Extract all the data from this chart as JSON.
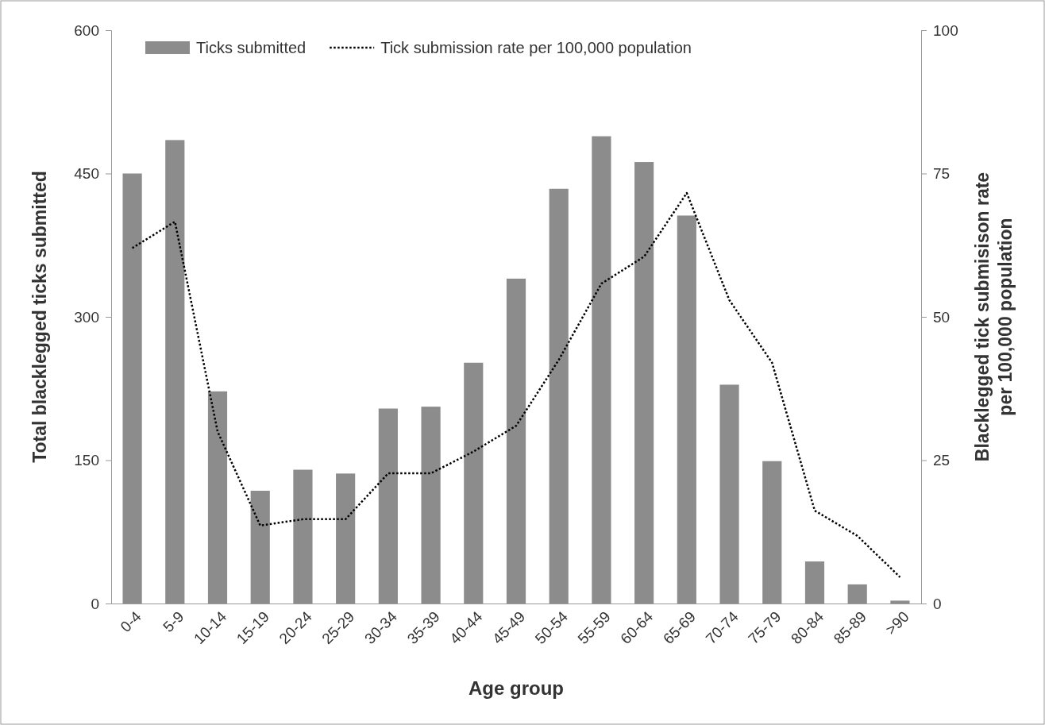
{
  "chart_data": {
    "type": "bar",
    "xlabel": "Age group",
    "ylabel": "Total blacklegged ticks submitted",
    "y2label": "Blacklegged tick submisison rate per 100,000 population",
    "categories": [
      "0-4",
      "5-9",
      "10-14",
      "15-19",
      "20-24",
      "25-29",
      "30-34",
      "35-39",
      "40-44",
      "45-49",
      "50-54",
      "55-59",
      "60-64",
      "65-69",
      "70-74",
      "75-79",
      "80-84",
      "85-89",
      ">90"
    ],
    "series": [
      {
        "name": "Ticks submitted",
        "color": "#8c8c8c",
        "values": [
          450,
          485,
          222,
          118,
          140,
          136,
          204,
          206,
          252,
          340,
          434,
          489,
          462,
          406,
          229,
          149,
          44,
          20,
          3
        ]
      },
      {
        "name": "Tick submission rate per 100,000 population",
        "type": "line",
        "axis": "y2",
        "color": "#000000",
        "line_style": "dotted",
        "values": [
          62,
          66.6,
          30,
          13.6,
          14.7,
          14.7,
          22.7,
          22.7,
          26.5,
          31,
          42.5,
          55.8,
          60.5,
          71.6,
          52.9,
          42,
          16.2,
          11.8,
          4.6
        ]
      }
    ],
    "ylim": [
      0,
      600
    ],
    "yticks": [
      0,
      150,
      300,
      450,
      600
    ],
    "y2lim": [
      0,
      100
    ],
    "y2ticks": [
      0,
      25,
      50,
      75,
      100
    ],
    "legend": "top"
  }
}
